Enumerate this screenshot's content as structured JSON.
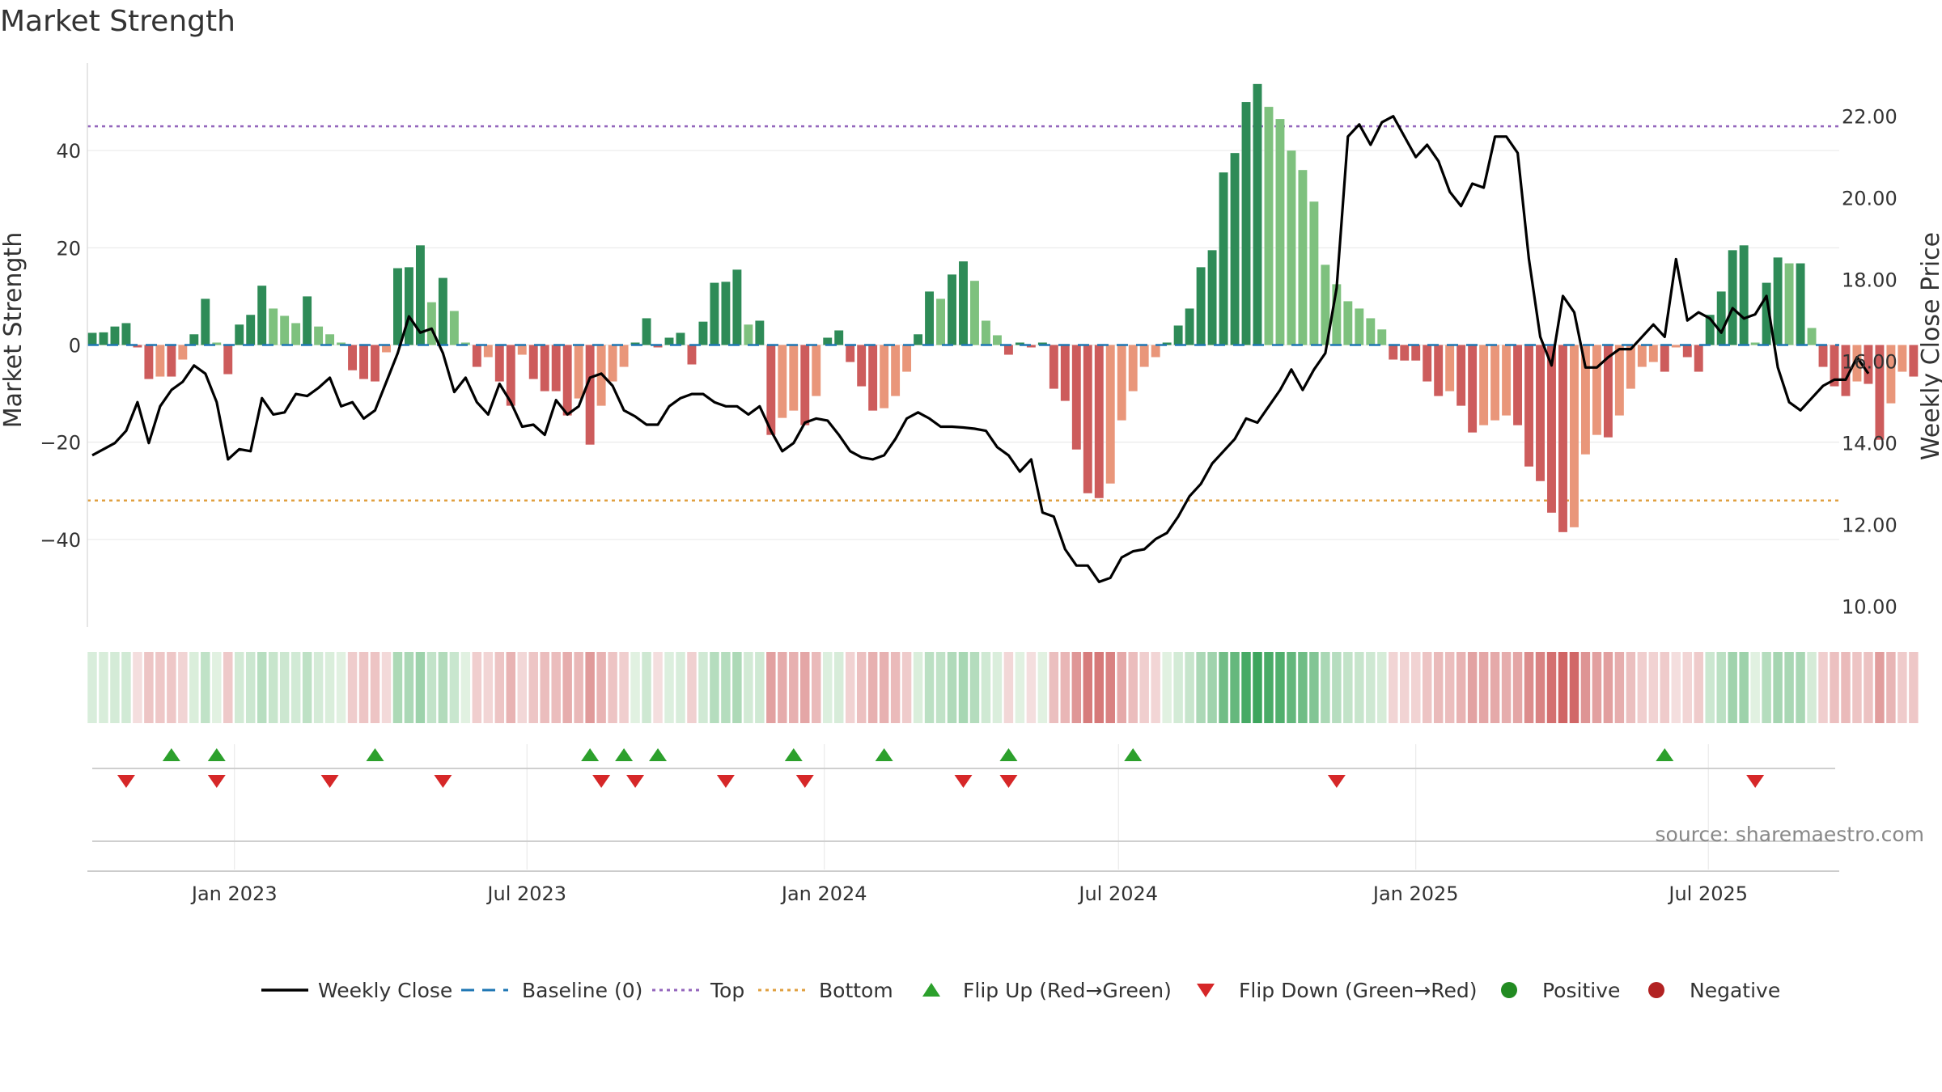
{
  "chart_data": {
    "type": "bar",
    "title": "Market Strength",
    "ylabel": "Market Strength",
    "y2label": "Weekly Close Price",
    "ylim": [
      -58,
      58
    ],
    "y2lim": [
      9.5,
      23.3
    ],
    "yticks": [
      -40,
      -20,
      0,
      20,
      40
    ],
    "yticklabels": [
      "−40",
      "−20",
      "0",
      "20",
      "40"
    ],
    "y2ticks": [
      10,
      12,
      14,
      16,
      18,
      20,
      22
    ],
    "y2ticklabels": [
      "10.00",
      "12.00",
      "14.00",
      "16.00",
      "18.00",
      "20.00",
      "22.00"
    ],
    "xlim": [
      "2022-10-02",
      "2025-09-20"
    ],
    "xticks": [
      "2023-01-01",
      "2023-07-01",
      "2024-01-01",
      "2024-07-01",
      "2025-01-01",
      "2025-07-01"
    ],
    "xticklabels": [
      "Jan 2023",
      "Jul 2023",
      "Jan 2024",
      "Jul 2024",
      "Jan 2025",
      "Jul 2025"
    ],
    "first_week": "2022-10-05",
    "top_level": 45,
    "bottom_level": -32,
    "baseline": 0,
    "grid": true,
    "legend_position": "bottom",
    "strength": [
      2.5,
      2.6,
      3.8,
      4.5,
      -0.5,
      -7,
      -6.5,
      -6.5,
      -3,
      2.2,
      9.5,
      0.5,
      -6,
      4.2,
      6.2,
      12.2,
      7.5,
      6,
      4.5,
      10,
      3.8,
      2.2,
      0.5,
      -5.2,
      -7,
      -7.5,
      -1.5,
      15.8,
      16,
      20.5,
      8.8,
      13.8,
      7,
      0.5,
      -4.5,
      -2.5,
      -7.5,
      -12.5,
      -2,
      -7,
      -9.5,
      -9.5,
      -14.5,
      -11,
      -20.5,
      -12.5,
      -7.5,
      -4.5,
      0.5,
      5.5,
      -0.5,
      1.5,
      2.5,
      -4,
      4.8,
      12.8,
      13,
      15.5,
      4.2,
      5,
      -18.5,
      -15,
      -13.5,
      -16.5,
      -10.5,
      1.5,
      3,
      -3.5,
      -8.5,
      -13.5,
      -13,
      -10.5,
      -5.5,
      2.2,
      11,
      9.5,
      14.5,
      17.2,
      13.2,
      5,
      2,
      -2,
      0.5,
      -0.5,
      0.5,
      -9,
      -11.5,
      -21.5,
      -30.5,
      -31.5,
      -28.5,
      -15.5,
      -9.5,
      -4.5,
      -2.5,
      0.5,
      4,
      7.5,
      16,
      19.5,
      35.5,
      39.5,
      50,
      53.7,
      49,
      46.5,
      40,
      36,
      29.5,
      16.5,
      12.5,
      9,
      7.5,
      5.5,
      3.2,
      -3,
      -3.2,
      -3.2,
      -7.5,
      -10.5,
      -9.5,
      -12.5,
      -18,
      -16.5,
      -15.5,
      -14.5,
      -16.5,
      -25,
      -28,
      -34.5,
      -38.5,
      -37.5,
      -22.5,
      -18.5,
      -19,
      -14.5,
      -9,
      -4.5,
      -3.5,
      -5.5,
      -0.5,
      -2.5,
      -5.5,
      6.2,
      11,
      19.5,
      20.5,
      0.5,
      12.8,
      18,
      16.8,
      16.8,
      3.5,
      -4.5,
      -8.5,
      -10.5,
      -7.5,
      -8,
      -19.5,
      -12,
      -5.5,
      -6.5
    ],
    "close": [
      13.7,
      13.85,
      14.0,
      14.3,
      15.0,
      14.0,
      14.9,
      15.3,
      15.5,
      15.9,
      15.7,
      15.0,
      13.6,
      13.85,
      13.8,
      15.1,
      14.7,
      14.75,
      15.2,
      15.15,
      15.35,
      15.6,
      14.9,
      15.0,
      14.6,
      14.8,
      15.5,
      16.2,
      17.1,
      16.7,
      16.8,
      16.2,
      15.25,
      15.6,
      15.0,
      14.7,
      15.45,
      15.0,
      14.4,
      14.45,
      14.2,
      15.05,
      14.7,
      14.9,
      15.6,
      15.7,
      15.4,
      14.8,
      14.65,
      14.45,
      14.45,
      14.9,
      15.1,
      15.2,
      15.2,
      15.0,
      14.9,
      14.9,
      14.7,
      14.9,
      14.3,
      13.8,
      14.0,
      14.5,
      14.6,
      14.55,
      14.2,
      13.8,
      13.65,
      13.6,
      13.7,
      14.1,
      14.6,
      14.75,
      14.6,
      14.4,
      14.4,
      14.38,
      14.35,
      14.3,
      13.9,
      13.7,
      13.3,
      13.6,
      12.3,
      12.2,
      11.4,
      11.0,
      11.0,
      10.6,
      10.7,
      11.2,
      11.35,
      11.4,
      11.65,
      11.8,
      12.2,
      12.7,
      13.0,
      13.5,
      13.8,
      14.1,
      14.6,
      14.5,
      14.9,
      15.3,
      15.8,
      15.3,
      15.8,
      16.2,
      17.8,
      21.5,
      21.8,
      21.3,
      21.85,
      22.0,
      21.5,
      21.0,
      21.3,
      20.9,
      20.15,
      19.8,
      20.35,
      20.25,
      21.5,
      21.5,
      21.1,
      18.5,
      16.6,
      15.9,
      17.6,
      17.2,
      15.85,
      15.85,
      16.1,
      16.3,
      16.3,
      16.6,
      16.9,
      16.6,
      18.5,
      17.0,
      17.2,
      17.05,
      16.7,
      17.3,
      17.05,
      17.15,
      17.6,
      15.85,
      15.0,
      14.8,
      15.1,
      15.4,
      15.55,
      15.55,
      16.1,
      15.7
    ],
    "flip_up": [
      "2022-11-23",
      "2022-12-21",
      "2023-03-29",
      "2023-08-09",
      "2023-08-30",
      "2023-09-20",
      "2023-12-13",
      "2024-02-07",
      "2024-04-24",
      "2024-07-10",
      "2025-06-04"
    ],
    "flip_down": [
      "2022-10-26",
      "2022-12-21",
      "2023-03-01",
      "2023-05-10",
      "2023-08-16",
      "2023-09-06",
      "2023-11-01",
      "2023-12-20",
      "2024-03-27",
      "2024-04-24",
      "2024-11-13",
      "2025-07-30"
    ],
    "legend": [
      "Weekly Close",
      "Baseline (0)",
      "Top",
      "Bottom",
      "Flip Up (Red→Green)",
      "Flip Down (Green→Red)",
      "Positive",
      "Negative"
    ],
    "colors": {
      "strong_green": "#2e8b57",
      "light_green": "#7ec17e",
      "strong_red": "#cd5c5c",
      "light_red": "#e9967a",
      "close_line": "#000000",
      "baseline": "#1f77b4",
      "top_line": "#9467bd",
      "bottom_line": "#e0a040",
      "flip_up": "#2ca02c",
      "flip_down": "#d62728",
      "positive": "#228b22",
      "negative": "#b22222"
    }
  },
  "watermark": "source: sharemaestro.com"
}
